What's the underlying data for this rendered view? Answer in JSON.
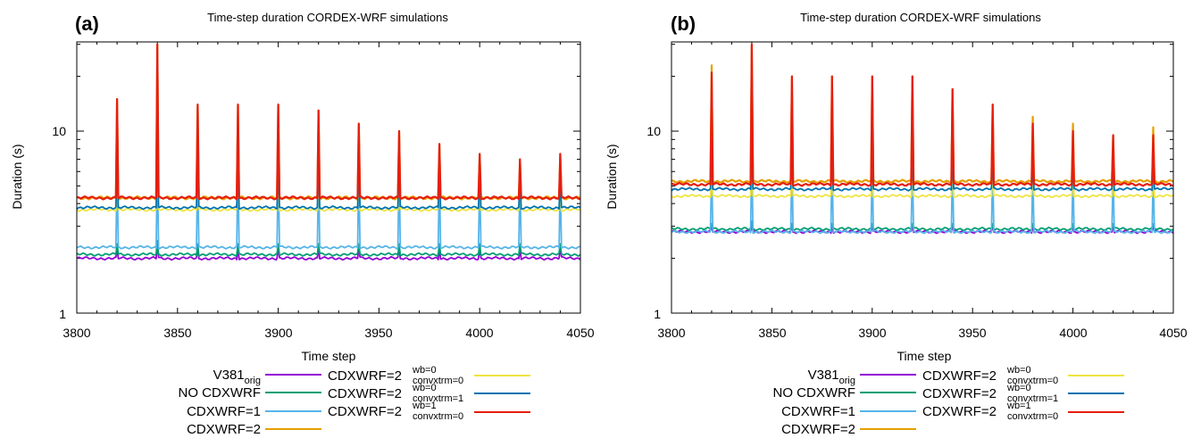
{
  "panels": [
    {
      "panel_label": "(a)",
      "title": "Time-step duration CORDEX-WRF simulations",
      "xlabel": "Time step",
      "ylabel": "Duration (s)",
      "x_ticks": [
        "3800",
        "3850",
        "3900",
        "3950",
        "4000",
        "4050"
      ],
      "y_ticks": [
        "1",
        "10"
      ]
    },
    {
      "panel_label": "(b)",
      "title": "Time-step duration CORDEX-WRF simulations",
      "xlabel": "Time step",
      "ylabel": "Duration (s)",
      "x_ticks": [
        "3800",
        "3850",
        "3900",
        "3950",
        "4000",
        "4050"
      ],
      "y_ticks": [
        "1",
        "10"
      ]
    }
  ],
  "legend": [
    {
      "base": "V381",
      "sub": "orig",
      "sup": "",
      "color": "#9400d3"
    },
    {
      "base": "NO CDXWRF",
      "sub": "",
      "sup": "",
      "color": "#009e73"
    },
    {
      "base": "CDXWRF=1",
      "sub": "",
      "sup": "",
      "color": "#56b4e9"
    },
    {
      "base": "CDXWRF=2",
      "sub": "",
      "sup": "",
      "color": "#e69f00"
    },
    {
      "base": "CDXWRF=2",
      "sub": "convxtrm=0",
      "sup": "wb=0",
      "color": "#f0e442"
    },
    {
      "base": "CDXWRF=2",
      "sub": "convxtrm=1",
      "sup": "wb=0",
      "color": "#0072b2"
    },
    {
      "base": "CDXWRF=2",
      "sub": "convxtrm=0",
      "sup": "wb=1",
      "color": "#e51e10"
    }
  ],
  "chart_data": [
    {
      "type": "line",
      "title": "Time-step duration CORDEX-WRF simulations",
      "xlabel": "Time step",
      "ylabel": "Duration (s)",
      "xlim": [
        3800,
        4050
      ],
      "ylim": [
        1,
        30
      ],
      "y_scale": "log",
      "grid": false,
      "legend_placement": "bottom",
      "spike_steps": [
        3820,
        3840,
        3860,
        3880,
        3900,
        3920,
        3940,
        3960,
        3980,
        4000,
        4020,
        4040
      ],
      "series": [
        {
          "name": "V381orig",
          "color": "#9400d3",
          "baseline": 2.0,
          "spike_peaks": [
            2.3,
            2.4,
            2.3,
            2.3,
            2.3,
            2.3,
            2.3,
            2.3,
            2.3,
            2.3,
            2.3,
            2.3
          ]
        },
        {
          "name": "NO CDXWRF",
          "color": "#009e73",
          "baseline": 2.1,
          "spike_peaks": [
            2.4,
            2.5,
            2.4,
            2.4,
            2.4,
            2.4,
            2.4,
            2.4,
            2.4,
            2.4,
            2.4,
            2.4
          ]
        },
        {
          "name": "CDXWRF=1",
          "color": "#56b4e9",
          "baseline": 2.3,
          "spike_peaks": [
            6.0,
            7.0,
            6.5,
            6.5,
            6.5,
            6.0,
            6.5,
            6.5,
            6.0,
            5.5,
            5.5,
            5.5
          ]
        },
        {
          "name": "CDXWRF=2",
          "color": "#e69f00",
          "baseline": 4.3,
          "spike_peaks": [
            15,
            30,
            14,
            14,
            14,
            13,
            11,
            10,
            8.5,
            7.5,
            7.0,
            7.5
          ]
        },
        {
          "name": "CDXWRF=2 wb=0 convxtrm=0",
          "color": "#f0e442",
          "baseline": 3.7,
          "spike_peaks": [
            5.5,
            6.5,
            5.5,
            5.5,
            5.5,
            5.5,
            5.5,
            5.5,
            5.0,
            5.0,
            5.0,
            5.0
          ]
        },
        {
          "name": "CDXWRF=2 wb=0 convxtrm=1",
          "color": "#0072b2",
          "baseline": 3.8,
          "spike_peaks": [
            6.5,
            7.5,
            6.5,
            6.5,
            6.5,
            6.5,
            6.5,
            6.5,
            6.0,
            5.5,
            5.5,
            5.5
          ]
        },
        {
          "name": "CDXWRF=2 wb=1 convxtrm=0",
          "color": "#e51e10",
          "baseline": 4.3,
          "spike_peaks": [
            15,
            30,
            14,
            14,
            14,
            13,
            11,
            10,
            8.5,
            7.5,
            7.0,
            7.5
          ]
        }
      ]
    },
    {
      "type": "line",
      "title": "Time-step duration CORDEX-WRF simulations",
      "xlabel": "Time step",
      "ylabel": "Duration (s)",
      "xlim": [
        3800,
        4050
      ],
      "ylim": [
        1,
        30
      ],
      "y_scale": "log",
      "grid": false,
      "legend_placement": "bottom",
      "spike_steps": [
        3820,
        3840,
        3860,
        3880,
        3900,
        3920,
        3940,
        3960,
        3980,
        4000,
        4020,
        4040
      ],
      "series": [
        {
          "name": "V381orig",
          "color": "#9400d3",
          "baseline": 2.8,
          "spike_peaks": [
            3.0,
            3.0,
            3.0,
            3.0,
            3.0,
            3.0,
            3.0,
            3.0,
            3.0,
            3.0,
            3.0,
            3.0
          ]
        },
        {
          "name": "NO CDXWRF",
          "color": "#009e73",
          "baseline": 2.9,
          "spike_peaks": [
            3.1,
            3.2,
            3.1,
            3.1,
            3.1,
            3.1,
            3.1,
            3.1,
            3.1,
            3.1,
            3.1,
            3.1
          ]
        },
        {
          "name": "CDXWRF=1",
          "color": "#56b4e9",
          "baseline": 2.8,
          "spike_peaks": [
            6.5,
            7.5,
            7.0,
            7.0,
            7.0,
            7.0,
            7.0,
            6.5,
            6.0,
            6.0,
            6.0,
            6.0
          ]
        },
        {
          "name": "CDXWRF=2",
          "color": "#e69f00",
          "baseline": 5.3,
          "spike_peaks": [
            23,
            30,
            20,
            20,
            20,
            20,
            17,
            14,
            12,
            11,
            9.5,
            10.5
          ]
        },
        {
          "name": "CDXWRF=2 wb=0 convxtrm=0",
          "color": "#f0e442",
          "baseline": 4.4,
          "spike_peaks": [
            6.5,
            7.5,
            6.5,
            6.5,
            6.5,
            6.5,
            6.5,
            6.5,
            6.0,
            6.0,
            6.0,
            6.0
          ]
        },
        {
          "name": "CDXWRF=2 wb=0 convxtrm=1",
          "color": "#0072b2",
          "baseline": 4.8,
          "spike_peaks": [
            7.0,
            8.0,
            7.0,
            7.0,
            7.0,
            7.0,
            7.0,
            7.0,
            6.5,
            6.5,
            6.5,
            6.5
          ]
        },
        {
          "name": "CDXWRF=2 wb=1 convxtrm=0",
          "color": "#e51e10",
          "baseline": 5.1,
          "spike_peaks": [
            21,
            30,
            20,
            20,
            20,
            20,
            17,
            14,
            11,
            10,
            9.5,
            9.5
          ]
        }
      ]
    }
  ]
}
